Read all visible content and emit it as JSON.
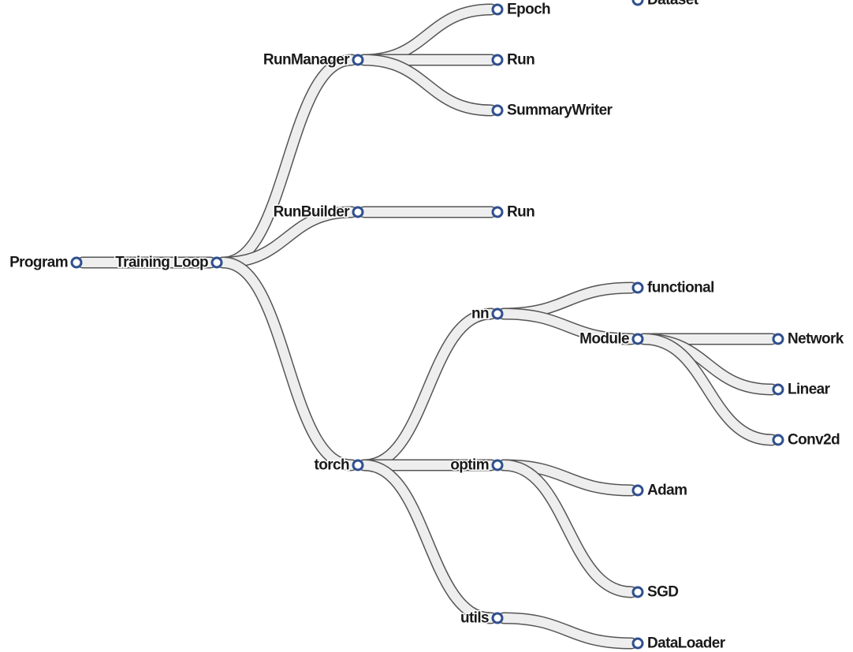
{
  "tree": {
    "root": {
      "label": "Program",
      "children": [
        {
          "label": "Training Loop",
          "children": [
            {
              "label": "RunManager",
              "children": [
                {
                  "label": "Epoch",
                  "children": []
                },
                {
                  "label": "Run",
                  "children": []
                },
                {
                  "label": "SummaryWriter",
                  "children": []
                }
              ]
            },
            {
              "label": "RunBuilder",
              "children": [
                {
                  "label": "Run",
                  "children": []
                }
              ]
            },
            {
              "label": "torch",
              "children": [
                {
                  "label": "nn",
                  "children": [
                    {
                      "label": "functional",
                      "children": []
                    },
                    {
                      "label": "Module",
                      "children": [
                        {
                          "label": "Network",
                          "children": []
                        },
                        {
                          "label": "Linear",
                          "children": []
                        },
                        {
                          "label": "Conv2d",
                          "children": []
                        }
                      ]
                    }
                  ]
                },
                {
                  "label": "optim",
                  "children": [
                    {
                      "label": "Adam",
                      "children": []
                    },
                    {
                      "label": "SGD",
                      "children": []
                    }
                  ]
                },
                {
                  "label": "utils",
                  "children": [
                    {
                      "label": "DataLoader",
                      "children": []
                    },
                    {
                      "label": "Dataset",
                      "children": []
                    }
                  ]
                }
              ]
            }
          ]
        }
      ]
    }
  },
  "colors": {
    "node_ring": "#2f4f8f",
    "link_fill": "#eeeeee",
    "link_edge": "#555555",
    "label": "#1a1a1a"
  }
}
